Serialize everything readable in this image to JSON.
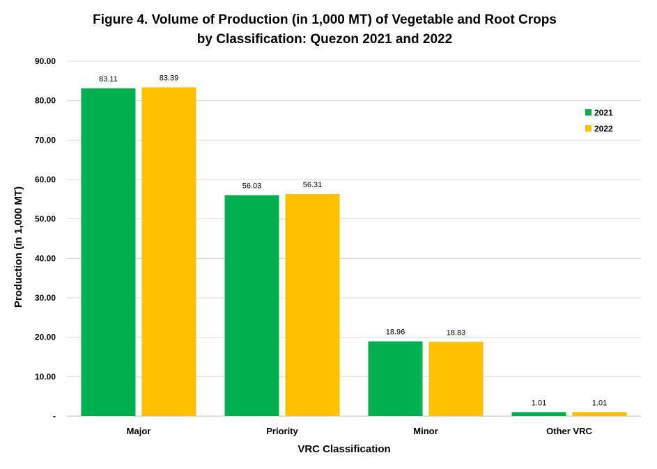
{
  "chart_data": {
    "type": "bar",
    "title_line1": "Figure 4. Volume of Production (in 1,000 MT) of Vegetable and Root Crops",
    "title_line2": "by Classification: Quezon 2021 and 2022",
    "xlabel": "VRC Classification",
    "ylabel": "Production (in 1,000 MT)",
    "categories": [
      "Major",
      "Priority",
      "Minor",
      "Other VRC"
    ],
    "series": [
      {
        "name": "2021",
        "color": "#00b050",
        "values": [
          83.11,
          56.03,
          18.96,
          1.01
        ],
        "labels": [
          "83.11",
          "56.03",
          "18.96",
          "1.01"
        ]
      },
      {
        "name": "2022",
        "color": "#ffc000",
        "values": [
          83.39,
          56.31,
          18.83,
          1.01
        ],
        "labels": [
          "83.39",
          "56.31",
          "18.83",
          "1.01"
        ]
      }
    ],
    "ylim": [
      0,
      90
    ],
    "yticks": [
      0,
      10,
      20,
      30,
      40,
      50,
      60,
      70,
      80,
      90
    ],
    "ytick_labels": [
      "-",
      "10.00",
      "20.00",
      "30.00",
      "40.00",
      "50.00",
      "60.00",
      "70.00",
      "80.00",
      "90.00"
    ],
    "grid": true,
    "legend_position": "right"
  }
}
